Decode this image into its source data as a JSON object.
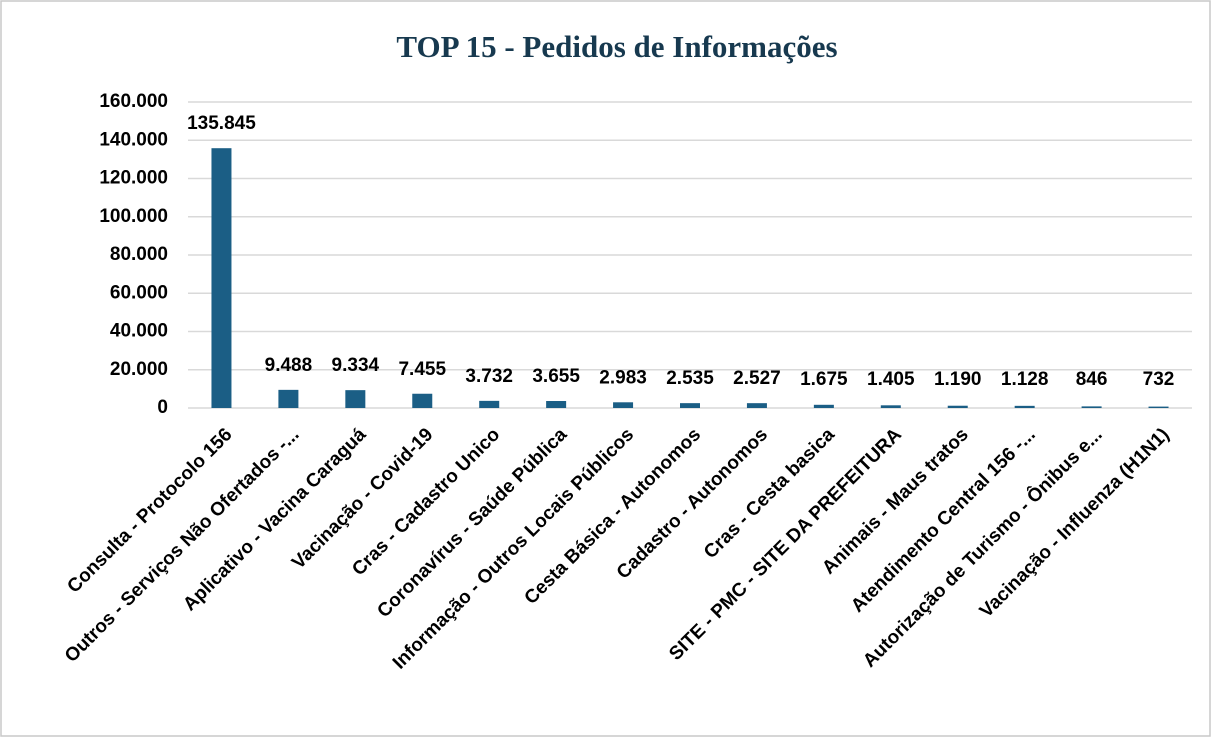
{
  "chart_data": {
    "type": "bar",
    "title": "TOP 15 - Pedidos de Informações",
    "categories": [
      "Consulta - Protocolo 156",
      "Outros - Serviços Não Ofertados -...",
      "Aplicativo - Vacina Caraguá",
      "Vacinação - Covid-19",
      "Cras - Cadastro Unico",
      "Coronavírus - Saúde Pública",
      "Informação - Outros Locais Públicos",
      "Cesta Básica - Autonomos",
      "Cadastro - Autonomos",
      "Cras - Cesta basica",
      "SITE - PMC - SITE DA PREFEITURA",
      "Animais - Maus tratos",
      "Atendimento Central 156 -...",
      "Autorização de Turismo - Ônibus e...",
      "Vacinação - Influenza (H1N1)"
    ],
    "values": [
      135845,
      9488,
      9334,
      7455,
      3732,
      3655,
      2983,
      2535,
      2527,
      1675,
      1405,
      1190,
      1128,
      846,
      732
    ],
    "value_labels": [
      "135.845",
      "9.488",
      "9.334",
      "7.455",
      "3.732",
      "3.655",
      "2.983",
      "2.535",
      "2.527",
      "1.675",
      "1.405",
      "1.190",
      "1.128",
      "846",
      "732"
    ],
    "color": "#1b5e85",
    "ylim": [
      0,
      160000
    ],
    "yticks": [
      0,
      {
        "value": 20000,
        "label": "20.000"
      },
      {
        "value": 40000,
        "label": "40.000"
      },
      {
        "value": 60000,
        "label": "60.000"
      },
      {
        "value": 80000,
        "label": "80.000"
      },
      {
        "value": 100000,
        "label": "100.000"
      },
      {
        "value": 120000,
        "label": "120.000"
      },
      {
        "value": 140000,
        "label": "140.000"
      },
      {
        "value": 160000,
        "label": "160.000"
      }
    ],
    "grid": true
  }
}
